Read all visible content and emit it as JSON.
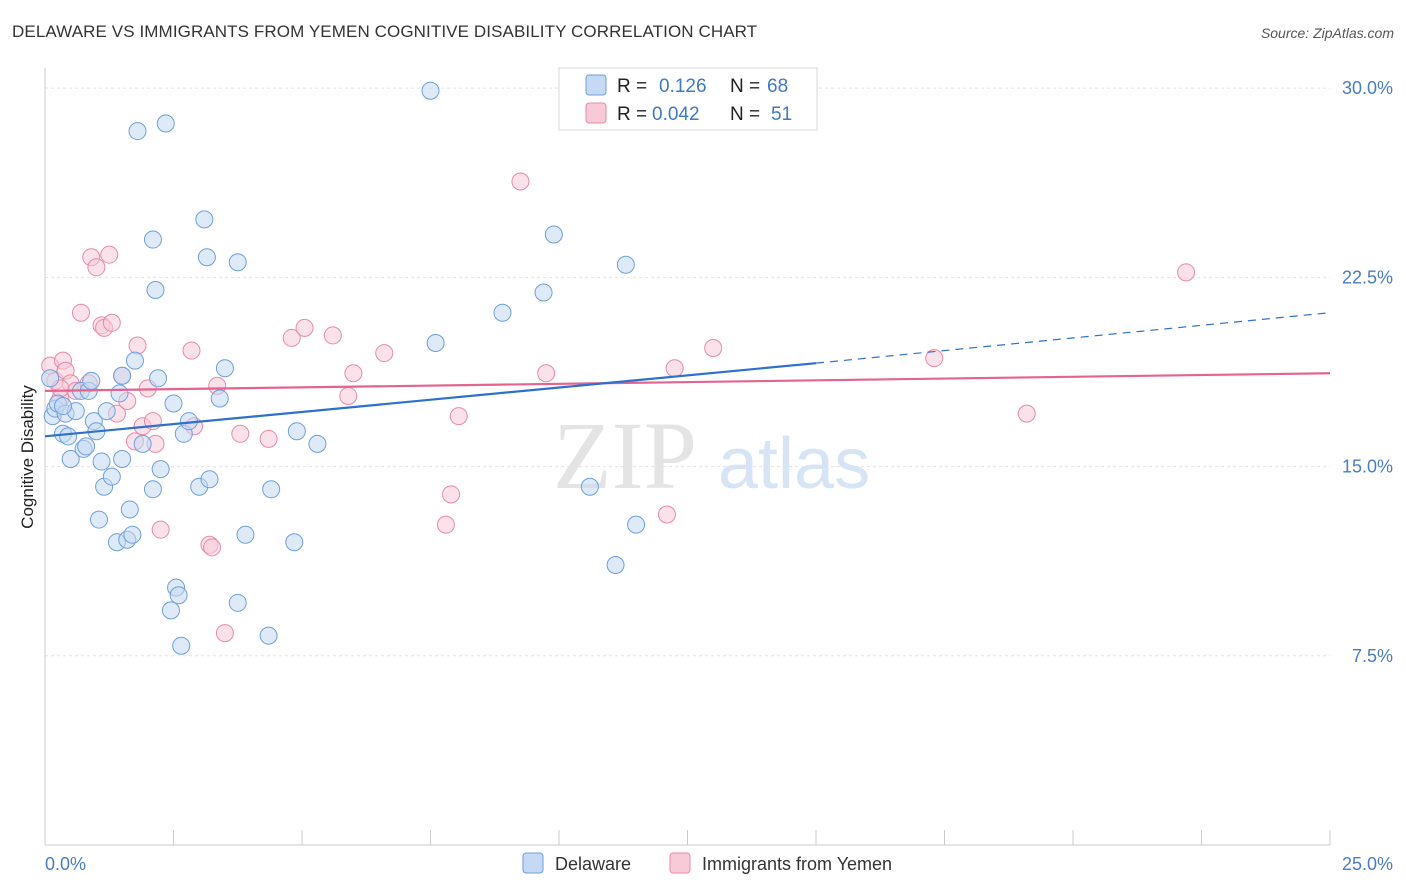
{
  "title": "DELAWARE VS IMMIGRANTS FROM YEMEN COGNITIVE DISABILITY CORRELATION CHART",
  "source": "Source: ZipAtlas.com",
  "watermark": {
    "zip": "ZIP",
    "atlas": "atlas"
  },
  "legend": {
    "rows": [
      {
        "r_label": "R =",
        "r_value": "0.126",
        "n_label": "N =",
        "n_value": "68"
      },
      {
        "r_label": "R =",
        "r_value": "0.042",
        "n_label": "N =",
        "n_value": "51"
      }
    ]
  },
  "bottom_legend": [
    "Delaware",
    "Immigrants from Yemen"
  ],
  "colors": {
    "delaware_fill": "#c5d9f4",
    "delaware_stroke": "#6f9fdb",
    "delaware_line": "#2f6fcd",
    "yemen_fill": "#f8cad8",
    "yemen_stroke": "#e78aa8",
    "yemen_line": "#e2648f",
    "tick_label": "#4a7cc4",
    "grid": "#e3e3e3"
  },
  "chart_data": {
    "type": "scatter",
    "title": "DELAWARE VS IMMIGRANTS FROM YEMEN COGNITIVE DISABILITY CORRELATION CHART",
    "xlabel": "",
    "ylabel": "Cognitive Disability",
    "xlim": [
      0,
      25
    ],
    "ylim": [
      0,
      30.8
    ],
    "x_tick_labels": [
      {
        "value": 0,
        "label": "0.0%"
      },
      {
        "value": 25,
        "label": "25.0%"
      }
    ],
    "y_tick_labels": [
      {
        "value": 30,
        "label": "30.0%"
      },
      {
        "value": 22.5,
        "label": "22.5%"
      },
      {
        "value": 15,
        "label": "15.0%"
      },
      {
        "value": 7.5,
        "label": "7.5%"
      }
    ],
    "grid": true,
    "legend_position": "top-center",
    "series": [
      {
        "name": "Delaware",
        "r": 0.126,
        "n": 68,
        "trend": {
          "x": [
            0,
            15
          ],
          "y": [
            16.2,
            19.1
          ],
          "dashed_to_x": 25,
          "dashed_y": 21.1
        },
        "points": [
          [
            0.1,
            18.5
          ],
          [
            0.15,
            17.0
          ],
          [
            0.2,
            17.3
          ],
          [
            0.25,
            17.5
          ],
          [
            0.35,
            16.3
          ],
          [
            0.4,
            17.1
          ],
          [
            0.45,
            16.2
          ],
          [
            0.5,
            15.3
          ],
          [
            0.6,
            17.2
          ],
          [
            0.7,
            18.0
          ],
          [
            0.75,
            15.7
          ],
          [
            0.8,
            15.8
          ],
          [
            0.85,
            18.0
          ],
          [
            0.9,
            18.4
          ],
          [
            0.95,
            16.8
          ],
          [
            1.0,
            16.4
          ],
          [
            1.05,
            12.9
          ],
          [
            1.1,
            15.2
          ],
          [
            1.15,
            14.2
          ],
          [
            1.2,
            17.2
          ],
          [
            1.3,
            14.6
          ],
          [
            1.4,
            12.0
          ],
          [
            1.45,
            17.9
          ],
          [
            1.5,
            15.3
          ],
          [
            1.6,
            12.1
          ],
          [
            1.65,
            13.3
          ],
          [
            1.7,
            12.3
          ],
          [
            1.75,
            19.2
          ],
          [
            1.8,
            28.3
          ],
          [
            1.9,
            15.9
          ],
          [
            2.1,
            24.0
          ],
          [
            2.15,
            22.0
          ],
          [
            2.2,
            18.5
          ],
          [
            2.25,
            14.9
          ],
          [
            2.35,
            28.6
          ],
          [
            2.45,
            9.3
          ],
          [
            2.5,
            17.5
          ],
          [
            2.55,
            10.2
          ],
          [
            2.65,
            7.9
          ],
          [
            2.7,
            16.3
          ],
          [
            2.8,
            16.8
          ],
          [
            3.0,
            14.2
          ],
          [
            3.1,
            24.8
          ],
          [
            3.15,
            23.3
          ],
          [
            3.2,
            14.5
          ],
          [
            3.4,
            17.7
          ],
          [
            3.5,
            18.9
          ],
          [
            3.75,
            23.1
          ],
          [
            3.75,
            9.6
          ],
          [
            3.9,
            12.3
          ],
          [
            4.4,
            14.1
          ],
          [
            4.35,
            8.3
          ],
          [
            4.85,
            12.0
          ],
          [
            4.9,
            16.4
          ],
          [
            5.3,
            15.9
          ],
          [
            1.5,
            18.6
          ],
          [
            2.1,
            14.1
          ],
          [
            2.6,
            9.9
          ],
          [
            0.35,
            17.4
          ],
          [
            7.5,
            29.9
          ],
          [
            7.6,
            19.9
          ],
          [
            8.9,
            21.1
          ],
          [
            9.7,
            21.9
          ],
          [
            9.9,
            24.2
          ],
          [
            10.6,
            14.2
          ],
          [
            11.1,
            11.1
          ],
          [
            11.3,
            23.0
          ],
          [
            11.5,
            12.7
          ]
        ]
      },
      {
        "name": "Immigrants from Yemen",
        "r": 0.042,
        "n": 51,
        "trend": {
          "x": [
            0,
            25
          ],
          "y": [
            18.0,
            18.7
          ]
        },
        "points": [
          [
            0.1,
            19.0
          ],
          [
            0.2,
            18.4
          ],
          [
            0.3,
            17.7
          ],
          [
            0.35,
            19.2
          ],
          [
            0.4,
            18.8
          ],
          [
            0.5,
            18.3
          ],
          [
            0.6,
            18.0
          ],
          [
            0.7,
            21.1
          ],
          [
            0.85,
            18.3
          ],
          [
            0.9,
            23.3
          ],
          [
            1.0,
            22.9
          ],
          [
            1.1,
            20.6
          ],
          [
            1.15,
            20.5
          ],
          [
            1.25,
            23.4
          ],
          [
            1.3,
            20.7
          ],
          [
            1.4,
            17.1
          ],
          [
            1.5,
            18.6
          ],
          [
            1.6,
            17.6
          ],
          [
            1.75,
            16.0
          ],
          [
            1.8,
            19.8
          ],
          [
            1.9,
            16.6
          ],
          [
            2.0,
            18.1
          ],
          [
            2.1,
            16.8
          ],
          [
            2.15,
            15.9
          ],
          [
            2.25,
            12.5
          ],
          [
            2.85,
            19.6
          ],
          [
            2.9,
            16.6
          ],
          [
            3.2,
            11.9
          ],
          [
            3.25,
            11.8
          ],
          [
            3.35,
            18.2
          ],
          [
            3.5,
            8.4
          ],
          [
            3.8,
            16.3
          ],
          [
            4.35,
            16.1
          ],
          [
            4.8,
            20.1
          ],
          [
            5.05,
            20.5
          ],
          [
            5.6,
            20.2
          ],
          [
            5.9,
            17.8
          ],
          [
            6.0,
            18.7
          ],
          [
            6.6,
            19.5
          ],
          [
            7.8,
            12.7
          ],
          [
            7.9,
            13.9
          ],
          [
            8.05,
            17.0
          ],
          [
            9.25,
            26.3
          ],
          [
            9.75,
            18.7
          ],
          [
            12.1,
            13.1
          ],
          [
            12.25,
            18.9
          ],
          [
            13.0,
            19.7
          ],
          [
            17.3,
            19.3
          ],
          [
            19.1,
            17.1
          ],
          [
            22.2,
            22.7
          ],
          [
            0.3,
            18.1
          ]
        ]
      }
    ]
  }
}
